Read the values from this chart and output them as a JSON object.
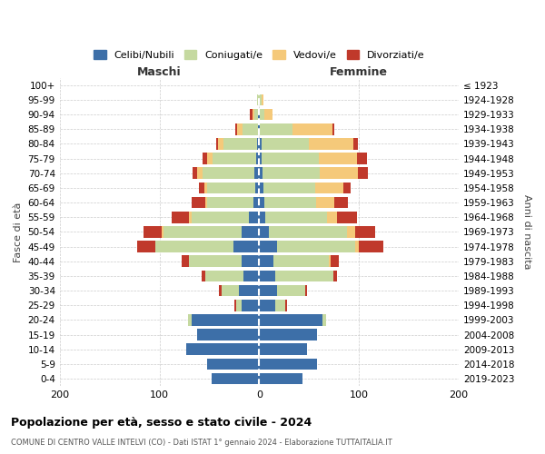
{
  "age_groups": [
    "0-4",
    "5-9",
    "10-14",
    "15-19",
    "20-24",
    "25-29",
    "30-34",
    "35-39",
    "40-44",
    "45-49",
    "50-54",
    "55-59",
    "60-64",
    "65-69",
    "70-74",
    "75-79",
    "80-84",
    "85-89",
    "90-94",
    "95-99",
    "100+"
  ],
  "birth_years": [
    "2019-2023",
    "2014-2018",
    "2009-2013",
    "2004-2008",
    "1999-2003",
    "1994-1998",
    "1989-1993",
    "1984-1988",
    "1979-1983",
    "1974-1978",
    "1969-1973",
    "1964-1968",
    "1959-1963",
    "1954-1958",
    "1949-1953",
    "1944-1948",
    "1939-1943",
    "1934-1938",
    "1929-1933",
    "1924-1928",
    "≤ 1923"
  ],
  "male": {
    "celibi": [
      48,
      52,
      73,
      62,
      68,
      18,
      20,
      16,
      18,
      26,
      18,
      10,
      6,
      4,
      5,
      3,
      2,
      1,
      1,
      0,
      0
    ],
    "coniugati": [
      0,
      0,
      0,
      0,
      3,
      5,
      18,
      38,
      52,
      78,
      78,
      58,
      46,
      48,
      52,
      44,
      34,
      16,
      4,
      2,
      0
    ],
    "vedovi": [
      0,
      0,
      0,
      0,
      0,
      0,
      0,
      0,
      0,
      0,
      2,
      2,
      2,
      3,
      5,
      5,
      5,
      5,
      2,
      0,
      0
    ],
    "divorziati": [
      0,
      0,
      0,
      0,
      0,
      2,
      2,
      4,
      8,
      18,
      18,
      18,
      14,
      5,
      5,
      5,
      2,
      2,
      2,
      0,
      0
    ]
  },
  "female": {
    "nubili": [
      43,
      58,
      48,
      58,
      63,
      16,
      18,
      16,
      14,
      18,
      10,
      6,
      5,
      4,
      3,
      2,
      2,
      1,
      1,
      0,
      0
    ],
    "coniugate": [
      0,
      0,
      0,
      0,
      4,
      10,
      28,
      58,
      56,
      78,
      78,
      62,
      52,
      52,
      58,
      58,
      48,
      32,
      4,
      2,
      0
    ],
    "vedove": [
      0,
      0,
      0,
      0,
      0,
      0,
      0,
      0,
      2,
      4,
      8,
      10,
      18,
      28,
      38,
      38,
      44,
      40,
      8,
      2,
      0
    ],
    "divorziate": [
      0,
      0,
      0,
      0,
      0,
      2,
      2,
      4,
      8,
      24,
      20,
      20,
      14,
      8,
      10,
      10,
      5,
      2,
      0,
      0,
      0
    ]
  },
  "colors": {
    "celibi_nubili": "#3d6fa8",
    "coniugati": "#c5d9a0",
    "vedovi": "#f5c97a",
    "divorziati": "#c0392b"
  },
  "xlim": 200,
  "title": "Popolazione per età, sesso e stato civile - 2024",
  "subtitle": "COMUNE DI CENTRO VALLE INTELVI (CO) - Dati ISTAT 1° gennaio 2024 - Elaborazione TUTTAITALIA.IT",
  "xlabel_left": "Maschi",
  "xlabel_right": "Femmine",
  "ylabel_left": "Fasce di età",
  "ylabel_right": "Anni di nascita",
  "legend_labels": [
    "Celibi/Nubili",
    "Coniugati/e",
    "Vedovi/e",
    "Divorziati/e"
  ],
  "bg_color": "#ffffff"
}
